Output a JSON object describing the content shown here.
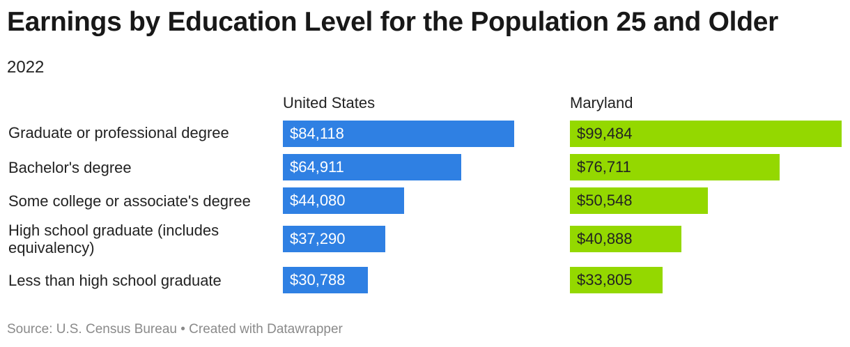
{
  "title": "Earnings by Education Level for the Population 25 and Older",
  "subtitle": "2022",
  "footer": "Source: U.S. Census Bureau • Created with Datawrapper",
  "colors": {
    "us": "#2f80e3",
    "md": "#94d800"
  },
  "chart_data": {
    "type": "bar",
    "orientation": "horizontal",
    "title": "Earnings by Education Level for the Population 25 and Older",
    "subtitle": "2022",
    "categories": [
      "Graduate or professional degree",
      "Bachelor's degree",
      "Some college or associate's degree",
      "High school graduate (includes equivalency)",
      "Less than high school graduate"
    ],
    "series": [
      {
        "name": "United States",
        "values": [
          84118,
          64911,
          44080,
          37290,
          30788
        ],
        "labels": [
          "$84,118",
          "$64,911",
          "$44,080",
          "$37,290",
          "$30,788"
        ]
      },
      {
        "name": "Maryland",
        "values": [
          99484,
          76711,
          50548,
          40888,
          33805
        ],
        "labels": [
          "$99,484",
          "$76,711",
          "$50,548",
          "$40,888",
          "$33,805"
        ]
      }
    ],
    "xlim": [
      0,
      99484
    ]
  }
}
